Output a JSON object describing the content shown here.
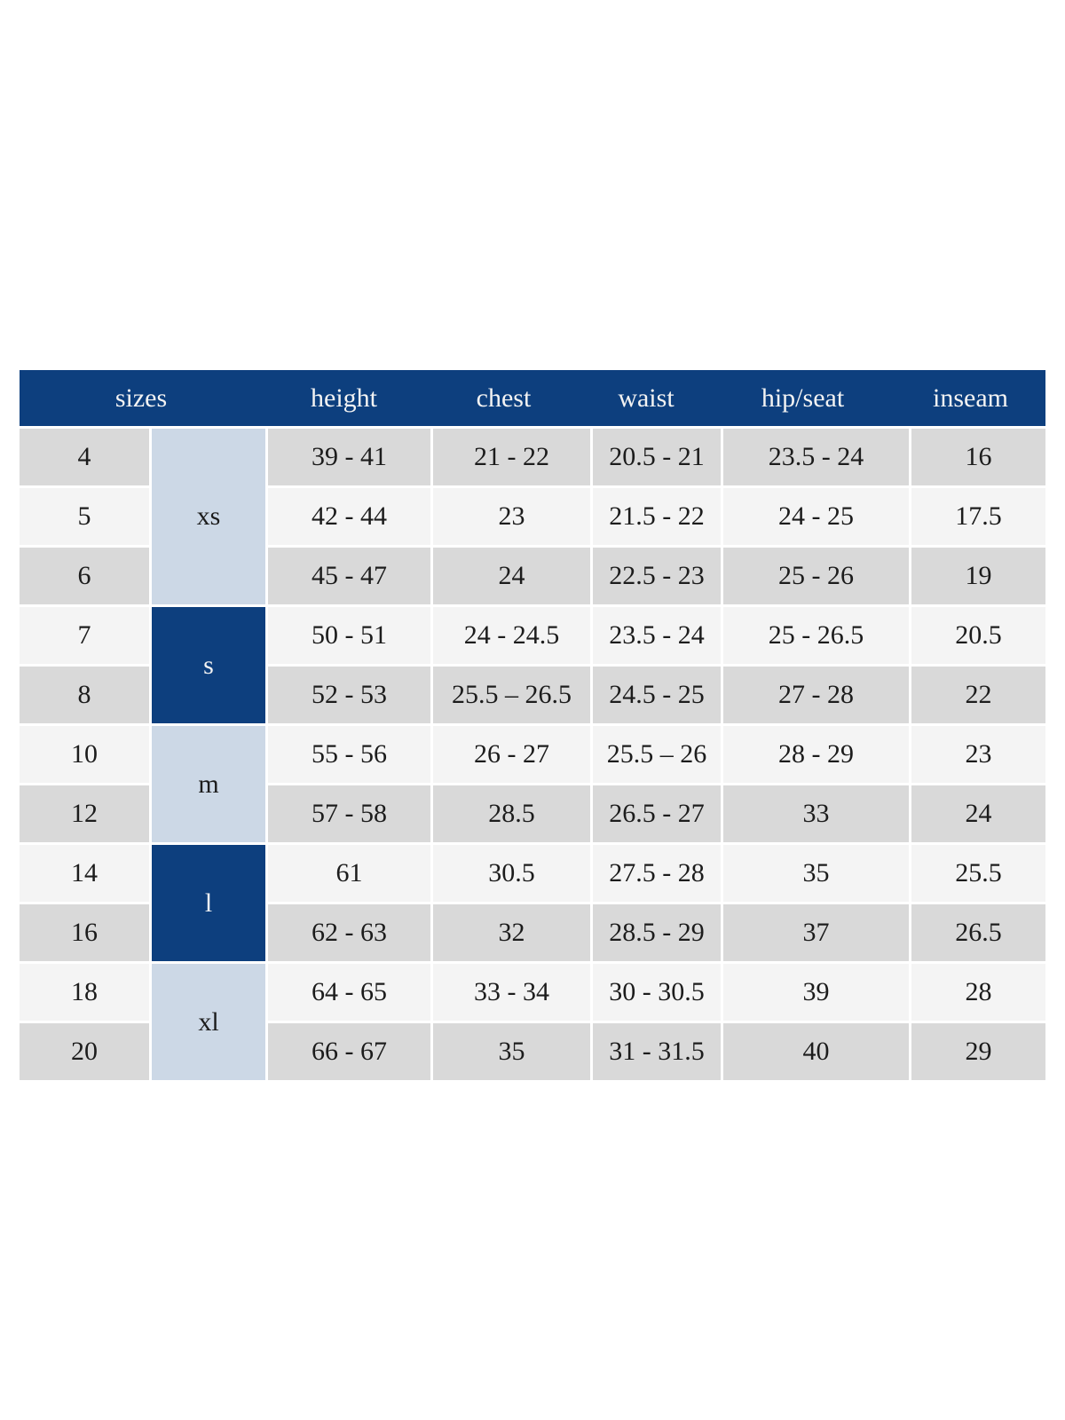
{
  "colors": {
    "header_bg": "#0d3f7e",
    "header_text": "#f3f3f3",
    "group_light_bg": "#ccd8e6",
    "group_dark_bg": "#0d3f7e",
    "row_dark_bg": "#d9d9d9",
    "row_light_bg": "#f4f4f4",
    "cell_text": "#1c1c1c",
    "page_bg": "#ffffff"
  },
  "header": {
    "sizes": "sizes",
    "height": "height",
    "chest": "chest",
    "waist": "waist",
    "hip_seat": "hip/seat",
    "inseam": "inseam"
  },
  "groups": [
    {
      "label": "xs",
      "variant": "light",
      "row_span": 3
    },
    {
      "label": "s",
      "variant": "dark",
      "row_span": 2
    },
    {
      "label": "m",
      "variant": "light",
      "row_span": 2
    },
    {
      "label": "l",
      "variant": "dark",
      "row_span": 2
    },
    {
      "label": "xl",
      "variant": "light",
      "row_span": 2
    }
  ],
  "rows": [
    {
      "size": "4",
      "group": "xs",
      "height": "39 - 41",
      "chest": "21 - 22",
      "waist": "20.5 - 21",
      "hip_seat": "23.5 - 24",
      "inseam": "16"
    },
    {
      "size": "5",
      "group": "xs",
      "height": "42 - 44",
      "chest": "23",
      "waist": "21.5 - 22",
      "hip_seat": "24 - 25",
      "inseam": "17.5"
    },
    {
      "size": "6",
      "group": "xs",
      "height": "45 - 47",
      "chest": "24",
      "waist": "22.5 - 23",
      "hip_seat": "25 - 26",
      "inseam": "19"
    },
    {
      "size": "7",
      "group": "s",
      "height": "50 - 51",
      "chest": "24 - 24.5",
      "waist": "23.5 - 24",
      "hip_seat": "25 - 26.5",
      "inseam": "20.5"
    },
    {
      "size": "8",
      "group": "s",
      "height": "52 - 53",
      "chest": "25.5 – 26.5",
      "waist": "24.5 - 25",
      "hip_seat": "27 - 28",
      "inseam": "22"
    },
    {
      "size": "10",
      "group": "m",
      "height": "55 - 56",
      "chest": "26 - 27",
      "waist": "25.5 – 26",
      "hip_seat": "28 - 29",
      "inseam": "23"
    },
    {
      "size": "12",
      "group": "m",
      "height": "57 - 58",
      "chest": "28.5",
      "waist": "26.5 - 27",
      "hip_seat": "33",
      "inseam": "24"
    },
    {
      "size": "14",
      "group": "l",
      "height": "61",
      "chest": "30.5",
      "waist": "27.5 - 28",
      "hip_seat": "35",
      "inseam": "25.5"
    },
    {
      "size": "16",
      "group": "l",
      "height": "62 - 63",
      "chest": "32",
      "waist": "28.5 - 29",
      "hip_seat": "37",
      "inseam": "26.5"
    },
    {
      "size": "18",
      "group": "xl",
      "height": "64 - 65",
      "chest": "33 - 34",
      "waist": "30 - 30.5",
      "hip_seat": "39",
      "inseam": "28"
    },
    {
      "size": "20",
      "group": "xl",
      "height": "66 - 67",
      "chest": "35",
      "waist": "31 - 31.5",
      "hip_seat": "40",
      "inseam": "29"
    }
  ],
  "chart_data": {
    "type": "table",
    "title": "sizes",
    "columns": [
      "sizes",
      "height",
      "chest",
      "waist",
      "hip/seat",
      "inseam"
    ],
    "size_groups": [
      {
        "label": "xs",
        "sizes": [
          "4",
          "5",
          "6"
        ]
      },
      {
        "label": "s",
        "sizes": [
          "7",
          "8"
        ]
      },
      {
        "label": "m",
        "sizes": [
          "10",
          "12"
        ]
      },
      {
        "label": "l",
        "sizes": [
          "14",
          "16"
        ]
      },
      {
        "label": "xl",
        "sizes": [
          "18",
          "20"
        ]
      }
    ],
    "rows": [
      [
        "4",
        "39 - 41",
        "21 - 22",
        "20.5 - 21",
        "23.5 - 24",
        "16"
      ],
      [
        "5",
        "42 - 44",
        "23",
        "21.5 - 22",
        "24 - 25",
        "17.5"
      ],
      [
        "6",
        "45 - 47",
        "24",
        "22.5 - 23",
        "25 - 26",
        "19"
      ],
      [
        "7",
        "50 - 51",
        "24 - 24.5",
        "23.5 - 24",
        "25 - 26.5",
        "20.5"
      ],
      [
        "8",
        "52 - 53",
        "25.5 – 26.5",
        "24.5 - 25",
        "27 - 28",
        "22"
      ],
      [
        "10",
        "55 - 56",
        "26 - 27",
        "25.5 – 26",
        "28 - 29",
        "23"
      ],
      [
        "12",
        "57 - 58",
        "28.5",
        "26.5 - 27",
        "33",
        "24"
      ],
      [
        "14",
        "61",
        "30.5",
        "27.5 - 28",
        "35",
        "25.5"
      ],
      [
        "16",
        "62 - 63",
        "32",
        "28.5 - 29",
        "37",
        "26.5"
      ],
      [
        "18",
        "64 - 65",
        "33 - 34",
        "30 - 30.5",
        "39",
        "28"
      ],
      [
        "20",
        "66 - 67",
        "35",
        "31 - 31.5",
        "40",
        "29"
      ]
    ]
  }
}
